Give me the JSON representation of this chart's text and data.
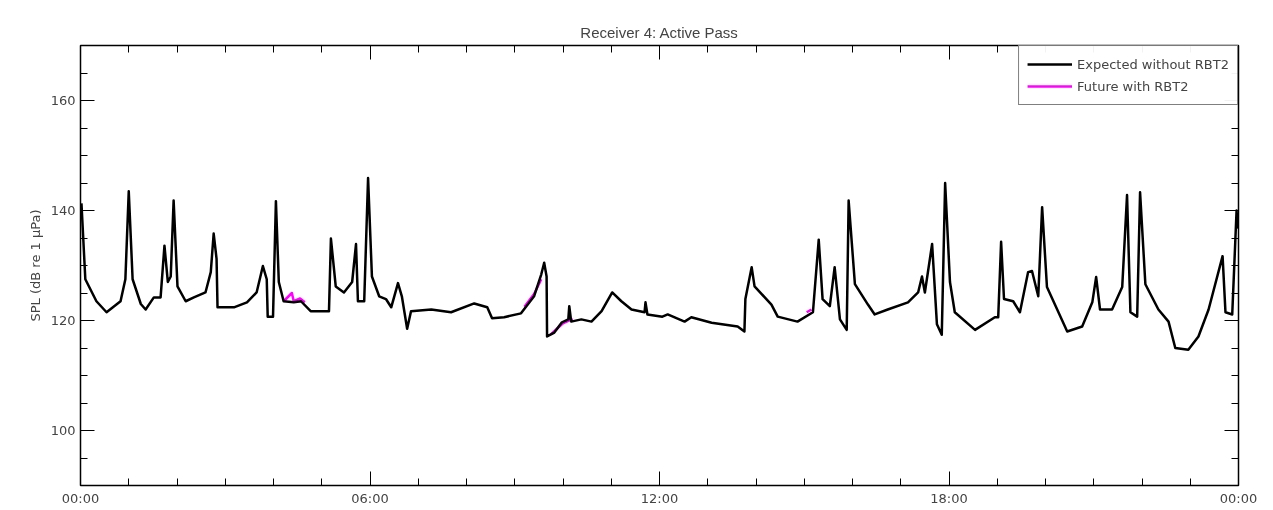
{
  "chart_data": {
    "type": "line",
    "title": "Receiver 4: Active Pass",
    "ylabel": "SPL (dB re 1 μPa)",
    "xlim": [
      0,
      24
    ],
    "ylim": [
      90,
      170
    ],
    "xticks": [
      {
        "value": 0,
        "label": "00:00"
      },
      {
        "value": 1,
        "label": null
      },
      {
        "value": 2,
        "label": null
      },
      {
        "value": 3,
        "label": null
      },
      {
        "value": 4,
        "label": null
      },
      {
        "value": 5,
        "label": null
      },
      {
        "value": 6,
        "label": "06:00"
      },
      {
        "value": 7,
        "label": null
      },
      {
        "value": 8,
        "label": null
      },
      {
        "value": 9,
        "label": null
      },
      {
        "value": 10,
        "label": null
      },
      {
        "value": 11,
        "label": null
      },
      {
        "value": 12,
        "label": "12:00"
      },
      {
        "value": 13,
        "label": null
      },
      {
        "value": 14,
        "label": null
      },
      {
        "value": 15,
        "label": null
      },
      {
        "value": 16,
        "label": null
      },
      {
        "value": 17,
        "label": null
      },
      {
        "value": 18,
        "label": "18:00"
      },
      {
        "value": 19,
        "label": null
      },
      {
        "value": 20,
        "label": null
      },
      {
        "value": 21,
        "label": null
      },
      {
        "value": 22,
        "label": null
      },
      {
        "value": 23,
        "label": null
      },
      {
        "value": 24,
        "label": "00:00"
      }
    ],
    "yticks": [
      {
        "value": 95,
        "label": null
      },
      100,
      {
        "value": 105,
        "label": null
      },
      {
        "value": 110,
        "label": null
      },
      {
        "value": 115,
        "label": null
      },
      120,
      {
        "value": 125,
        "label": null
      },
      {
        "value": 130,
        "label": null
      },
      {
        "value": 135,
        "label": null
      },
      140,
      {
        "value": 145,
        "label": null
      },
      {
        "value": 150,
        "label": null
      },
      {
        "value": 155,
        "label": null
      },
      160,
      {
        "value": 165,
        "label": null
      }
    ],
    "grid": false,
    "legend": "top right",
    "marker": "none",
    "line_style": "solid",
    "series": [
      {
        "name": "Future with RBT2",
        "color": "#ff00ff",
        "x": [
          4.21,
          4.38,
          4.42,
          4.55,
          4.65,
          4.7,
          9.2,
          9.4,
          9.55,
          9.6,
          9.75,
          10.0,
          10.2,
          10.3,
          15.05,
          15.15
        ],
        "values": [
          123.5,
          125,
          123.5,
          124,
          123.3,
          null,
          122.5,
          124.8,
          127.5,
          null,
          117.5,
          119.5,
          120.3,
          null,
          121.5,
          122
        ]
      },
      {
        "name": "Expected without RBT2",
        "color": "#000000",
        "x": [
          0.02,
          0.1,
          0.33,
          0.54,
          0.83,
          0.93,
          1.0,
          1.08,
          1.25,
          1.35,
          1.52,
          1.66,
          1.74,
          1.81,
          1.87,
          1.93,
          2.01,
          2.18,
          2.35,
          2.59,
          2.7,
          2.76,
          2.82,
          2.84,
          3.18,
          3.45,
          3.65,
          3.78,
          3.86,
          3.88,
          3.99,
          4.05,
          4.11,
          4.21,
          4.42,
          4.57,
          4.77,
          5.15,
          5.19,
          5.29,
          5.46,
          5.63,
          5.71,
          5.75,
          5.88,
          5.96,
          6.04,
          6.19,
          6.33,
          6.44,
          6.58,
          6.66,
          6.77,
          6.85,
          7.27,
          7.68,
          8.16,
          8.43,
          8.53,
          8.78,
          9.13,
          9.4,
          9.55,
          9.61,
          9.66,
          9.67,
          9.82,
          9.97,
          10.11,
          10.13,
          10.17,
          10.38,
          10.59,
          10.8,
          11.02,
          11.21,
          11.42,
          11.69,
          11.71,
          11.75,
          12.06,
          12.17,
          12.52,
          12.66,
          13.08,
          13.62,
          13.76,
          13.78,
          13.91,
          13.97,
          14.32,
          14.45,
          14.86,
          15.18,
          15.3,
          15.38,
          15.53,
          15.63,
          15.74,
          15.88,
          15.92,
          16.05,
          16.32,
          16.46,
          16.73,
          17.15,
          17.36,
          17.44,
          17.5,
          17.65,
          17.75,
          17.85,
          17.92,
          18.02,
          18.12,
          18.54,
          18.95,
          19.02,
          19.08,
          19.14,
          19.33,
          19.47,
          19.64,
          19.72,
          19.85,
          19.93,
          20.03,
          20.45,
          20.76,
          20.97,
          21.05,
          21.13,
          21.38,
          21.59,
          21.69,
          21.76,
          21.9,
          21.96,
          22.07,
          22.34,
          22.55,
          22.69,
          22.96,
          23.17,
          23.38,
          23.67,
          23.73,
          23.87,
          23.96,
          23.98
        ],
        "values": [
          141.3,
          127.5,
          123.5,
          121.5,
          123.5,
          127.5,
          143.5,
          127.5,
          123,
          122,
          124.2,
          124.2,
          133.6,
          127,
          128,
          141.8,
          126.2,
          123.5,
          124.2,
          125.1,
          128.8,
          135.8,
          131.2,
          122.4,
          122.4,
          123.3,
          125.1,
          129.9,
          127.5,
          120.7,
          120.7,
          141.7,
          127,
          123.5,
          123.3,
          123.5,
          121.7,
          121.7,
          134.9,
          126.2,
          125.1,
          127,
          133.9,
          123.5,
          123.5,
          145.9,
          128,
          124.4,
          123.9,
          122.4,
          126.8,
          124.4,
          118.5,
          121.7,
          122,
          121.5,
          123.1,
          122.4,
          120.4,
          120.6,
          121.3,
          124.4,
          128.4,
          130.5,
          128,
          117.1,
          117.8,
          119.6,
          120.2,
          122.6,
          119.8,
          120.2,
          119.8,
          121.7,
          125.1,
          123.5,
          122,
          121.5,
          123.3,
          121.1,
          120.7,
          121.1,
          119.8,
          120.6,
          119.6,
          118.9,
          118,
          123.9,
          129.7,
          126.2,
          122.9,
          120.7,
          119.8,
          121.5,
          134.7,
          123.9,
          122.6,
          129.7,
          120.2,
          118.3,
          141.8,
          126.6,
          122.9,
          121.1,
          122,
          123.3,
          125.1,
          128,
          125.1,
          133.9,
          119.3,
          117.4,
          145,
          127,
          121.5,
          118.3,
          120.6,
          120.6,
          134.3,
          123.9,
          123.5,
          121.5,
          128.8,
          129,
          124.4,
          140.6,
          126.1,
          118,
          118.9,
          123.3,
          127.9,
          122,
          122,
          126.1,
          142.8,
          121.5,
          120.7,
          143.3,
          126.6,
          122,
          119.8,
          115,
          114.7,
          117.1,
          122,
          131.7,
          121.5,
          121.1,
          140,
          136.7
        ]
      }
    ]
  }
}
